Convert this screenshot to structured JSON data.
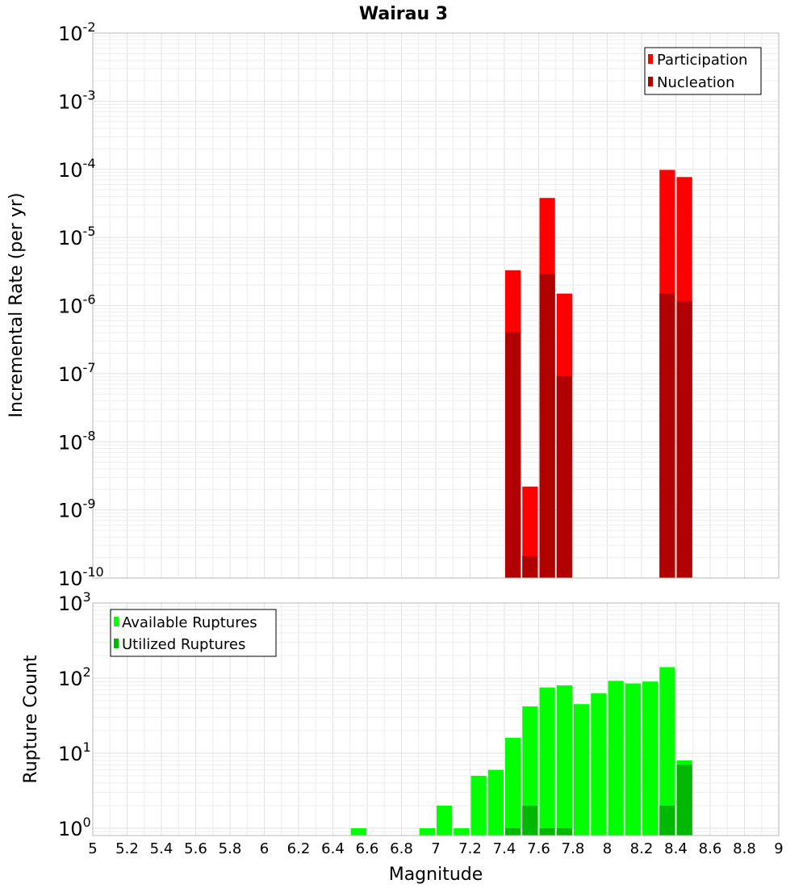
{
  "title": "Wairau 3",
  "chart_data": [
    {
      "type": "bar",
      "scale": "log",
      "ylabel": "Incremental Rate (per yr)",
      "ylim": [
        1e-10,
        0.01
      ],
      "yticks": [
        {
          "base": "10",
          "exp": "-10"
        },
        {
          "base": "10",
          "exp": "-9"
        },
        {
          "base": "10",
          "exp": "-8"
        },
        {
          "base": "10",
          "exp": "-7"
        },
        {
          "base": "10",
          "exp": "-6"
        },
        {
          "base": "10",
          "exp": "-5"
        },
        {
          "base": "10",
          "exp": "-4"
        },
        {
          "base": "10",
          "exp": "-3"
        },
        {
          "base": "10",
          "exp": "-2"
        }
      ],
      "legend": {
        "position": "top-right"
      },
      "series": [
        {
          "name": "Participation",
          "color": "#ff0000",
          "x": [
            7.45,
            7.55,
            7.65,
            7.75,
            8.35,
            8.45
          ],
          "values": [
            3.3e-06,
            2.2e-09,
            3.8e-05,
            1.5e-06,
            9.8e-05,
            7.7e-05
          ]
        },
        {
          "name": "Nucleation",
          "color": "#b00000",
          "x": [
            7.45,
            7.55,
            7.65,
            7.75,
            8.35,
            8.45
          ],
          "values": [
            4.1e-07,
            2.1e-10,
            2.9e-06,
            9.2e-08,
            1.5e-06,
            1.15e-06
          ]
        }
      ]
    },
    {
      "type": "bar",
      "scale": "log",
      "ylabel": "Rupture Count",
      "xlabel": "Magnitude",
      "xlim": [
        5,
        9
      ],
      "ylim": [
        0.8,
        1000
      ],
      "xticks": [
        "5",
        "5.2",
        "5.4",
        "5.6",
        "5.8",
        "6",
        "6.2",
        "6.4",
        "6.6",
        "6.8",
        "7",
        "7.2",
        "7.4",
        "7.6",
        "7.8",
        "8",
        "8.2",
        "8.4",
        "8.6",
        "8.8",
        "9"
      ],
      "yticks": [
        {
          "base": "10",
          "exp": "0"
        },
        {
          "base": "10",
          "exp": "1"
        },
        {
          "base": "10",
          "exp": "2"
        },
        {
          "base": "10",
          "exp": "3"
        }
      ],
      "legend": {
        "position": "top-left"
      },
      "series": [
        {
          "name": "Available Ruptures",
          "color": "#00ff00",
          "x": [
            6.55,
            6.95,
            7.05,
            7.15,
            7.25,
            7.35,
            7.45,
            7.55,
            7.65,
            7.75,
            7.85,
            7.95,
            8.05,
            8.15,
            8.25,
            8.35,
            8.45
          ],
          "values": [
            1,
            1,
            2,
            1,
            5,
            6,
            16,
            42,
            75,
            80,
            45,
            63,
            92,
            85,
            90,
            140,
            8
          ]
        },
        {
          "name": "Utilized Ruptures",
          "color": "#00b800",
          "x": [
            7.45,
            7.55,
            7.65,
            7.75,
            8.35,
            8.45
          ],
          "values": [
            1,
            2,
            1,
            1,
            2,
            7
          ]
        }
      ]
    }
  ]
}
